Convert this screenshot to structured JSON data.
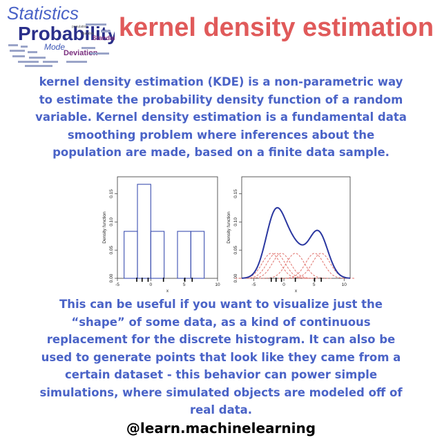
{
  "logo": {
    "line1": "Statistics",
    "line2": "Probability",
    "words": [
      "Deviation",
      "Mode",
      "Standard",
      "population",
      "Variable"
    ]
  },
  "title": "kernel density estimation",
  "paragraph1": "kernel density estimation (KDE) is a non-parametric way to estimate the probability density function of a random variable. Kernel density estimation is a fundamental data smoothing problem where inferences about the population are made, based on a finite data sample.",
  "paragraph2": "This can be useful if you want to visualize just the “shape” of some data, as a kind of continuous replacement for the discrete histogram. It can also be used to generate points that look like they came from a certain dataset - this behavior can power simple simulations, where simulated objects are modeled off of real data.",
  "handle": "@learn.machinelearning",
  "colors": {
    "title": "#e05a5a",
    "text": "#4a63c7",
    "histogram": "#3b4fb0",
    "kde": "#2a37a0",
    "kernel": "#e0706a"
  },
  "chart_data": [
    {
      "type": "bar",
      "xlabel": "x",
      "ylabel": "Density function",
      "xlim": [
        -5,
        10
      ],
      "ylim": [
        0,
        0.18
      ],
      "xticks": [
        -5,
        0,
        5,
        10
      ],
      "yticks": [
        0.0,
        0.05,
        0.1,
        0.15
      ],
      "ytick_labels": [
        "0.00",
        "0.05",
        "0.10",
        "0.15"
      ],
      "bins": [
        {
          "x0": -4,
          "x1": -2,
          "value": 0.0833
        },
        {
          "x0": -2,
          "x1": 0,
          "value": 0.1667
        },
        {
          "x0": 0,
          "x1": 2,
          "value": 0.0833
        },
        {
          "x0": 2,
          "x1": 4,
          "value": 0.0
        },
        {
          "x0": 4,
          "x1": 6,
          "value": 0.0833
        },
        {
          "x0": 6,
          "x1": 8,
          "value": 0.0833
        }
      ],
      "rug": [
        -2.1,
        -1.3,
        -0.4,
        1.9,
        5.1,
        6.2
      ]
    },
    {
      "type": "line",
      "xlabel": "x",
      "ylabel": "Density function",
      "xlim": [
        -7,
        11
      ],
      "ylim": [
        0,
        0.18
      ],
      "xticks": [
        -5,
        0,
        5,
        10
      ],
      "yticks": [
        0.0,
        0.05,
        0.1,
        0.15
      ],
      "ytick_labels": [
        "0.00",
        "0.05",
        "0.10",
        "0.15"
      ],
      "kernel_bandwidth": 1.5,
      "kernel_centers": [
        -2.1,
        -1.3,
        -0.4,
        1.9,
        5.1,
        6.2
      ],
      "rug": [
        -2.1,
        -1.3,
        -0.4,
        1.9,
        5.1,
        6.2
      ]
    }
  ]
}
